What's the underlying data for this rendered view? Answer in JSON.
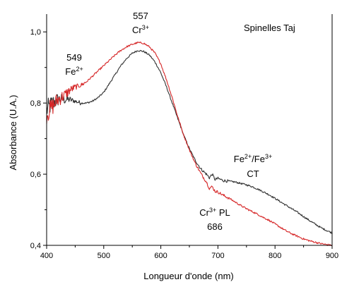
{
  "chart_data": {
    "type": "line",
    "title": "Spinelles Taj",
    "xlabel": "Longueur d'onde (nm)",
    "ylabel": "Absorbance (U.A.)",
    "xlim": [
      400,
      900
    ],
    "ylim": [
      0.4,
      1.05
    ],
    "x_ticks": [
      400,
      500,
      600,
      700,
      800,
      900
    ],
    "x_tick_labels": [
      "400",
      "500",
      "600",
      "700",
      "800",
      "900"
    ],
    "y_ticks": [
      0.4,
      0.6,
      0.8,
      1.0
    ],
    "y_tick_labels": [
      "0,4",
      "0,6",
      "0,8",
      "1,0"
    ],
    "grid": false,
    "legend": "none",
    "series": [
      {
        "color": "#333333",
        "noise": "high-below-460nm",
        "x": [
          400,
          410,
          420,
          430,
          440,
          450,
          460,
          470,
          480,
          490,
          500,
          510,
          520,
          530,
          540,
          550,
          560,
          570,
          580,
          590,
          600,
          610,
          620,
          630,
          640,
          650,
          660,
          670,
          680,
          685,
          690,
          695,
          700,
          710,
          720,
          730,
          740,
          750,
          760,
          770,
          780,
          790,
          800,
          810,
          820,
          830,
          840,
          850,
          860,
          870,
          880,
          890,
          900
        ],
        "y": [
          0.78,
          0.8,
          0.81,
          0.81,
          0.81,
          0.805,
          0.8,
          0.8,
          0.805,
          0.815,
          0.83,
          0.855,
          0.88,
          0.905,
          0.925,
          0.94,
          0.948,
          0.945,
          0.935,
          0.915,
          0.885,
          0.845,
          0.8,
          0.755,
          0.71,
          0.672,
          0.64,
          0.615,
          0.6,
          0.59,
          0.6,
          0.585,
          0.588,
          0.582,
          0.58,
          0.578,
          0.574,
          0.57,
          0.565,
          0.558,
          0.55,
          0.542,
          0.532,
          0.522,
          0.512,
          0.502,
          0.492,
          0.481,
          0.47,
          0.46,
          0.45,
          0.442,
          0.435
        ]
      },
      {
        "color": "#d62728",
        "noise": "high-below-470nm",
        "x": [
          400,
          410,
          420,
          430,
          440,
          450,
          460,
          470,
          480,
          490,
          500,
          510,
          520,
          530,
          540,
          550,
          560,
          570,
          580,
          590,
          600,
          610,
          620,
          630,
          640,
          650,
          660,
          670,
          680,
          685,
          690,
          695,
          700,
          710,
          720,
          730,
          740,
          750,
          760,
          770,
          780,
          790,
          800,
          810,
          820,
          830,
          840,
          850,
          860,
          870,
          880,
          890,
          900
        ],
        "y": [
          0.77,
          0.79,
          0.81,
          0.82,
          0.835,
          0.845,
          0.85,
          0.86,
          0.875,
          0.89,
          0.905,
          0.92,
          0.935,
          0.948,
          0.958,
          0.965,
          0.97,
          0.968,
          0.958,
          0.94,
          0.91,
          0.865,
          0.815,
          0.76,
          0.71,
          0.668,
          0.632,
          0.602,
          0.578,
          0.56,
          0.565,
          0.552,
          0.55,
          0.54,
          0.532,
          0.522,
          0.512,
          0.503,
          0.495,
          0.487,
          0.478,
          0.47,
          0.46,
          0.45,
          0.44,
          0.432,
          0.425,
          0.418,
          0.413,
          0.409,
          0.405,
          0.402,
          0.4
        ]
      }
    ],
    "annotations": [
      {
        "id": "fe2",
        "lines": [
          {
            "text": "549"
          },
          {
            "text": "Fe",
            "sup": "2+"
          }
        ]
      },
      {
        "id": "cr3",
        "lines": [
          {
            "text": "557"
          },
          {
            "text": "Cr",
            "sup": "3+"
          }
        ]
      },
      {
        "id": "fect",
        "lines": [
          {
            "text": "Fe",
            "sup": "2+",
            "tail": "/Fe",
            "sup2": "3+"
          },
          {
            "text": "CT"
          }
        ]
      },
      {
        "id": "crpl",
        "lines": [
          {
            "text": "Cr",
            "sup": "3+",
            "tail": " PL"
          },
          {
            "text": "686"
          }
        ]
      }
    ]
  }
}
